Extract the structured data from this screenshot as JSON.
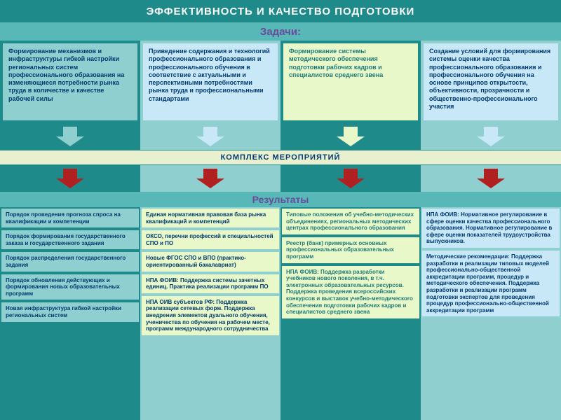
{
  "colors": {
    "teal_dark": "#1f8a8a",
    "teal_light": "#8fcfcf",
    "pale_yellow": "#e8f8c8",
    "pale_blue": "#c8e8f8",
    "navy": "#003a70",
    "purple": "#6a4a9a",
    "teal_text": "#1f7a7a",
    "complex_bg": "#e8f0d0",
    "red_arrow": "#b02020",
    "header_accent": "#58b8b8",
    "white": "#ffffff"
  },
  "title": "ЭФФЕКТИВНОСТЬ И КАЧЕСТВО ПОДГОТОВКИ",
  "tasks_label": "Задачи:",
  "tasks": [
    "Формирование механизмов и инфраструктуры гибкой настройки региональных систем профессионального образования на изменяющиеся потребности рынка труда в количестве и качестве рабочей силы",
    "Приведение содержания и технологий профессионального образования и профессионального обучения в соответствие с актуальными и перспективными потребностями рынка труда и профессиональными стандартами",
    "Формирование системы методического обеспечения подготовки рабочих кадров и специалистов среднего звена",
    "Создание условий для формирования системы оценки качества профессионального образования и профессионального обучения на основе принципов открытости, объективности, прозрачности и общественно-профессионального участия"
  ],
  "complex_label": "КОМПЛЕКС МЕРОПРИЯТИЙ",
  "results_label": "Результаты",
  "task_styles": [
    {
      "bg_key": "teal_light",
      "text_key": "navy",
      "arrow_key": "teal_light"
    },
    {
      "bg_key": "pale_blue",
      "text_key": "navy",
      "arrow_key": "pale_blue"
    },
    {
      "bg_key": "pale_yellow",
      "text_key": "teal_text",
      "arrow_key": "pale_yellow"
    },
    {
      "bg_key": "pale_blue",
      "text_key": "navy",
      "arrow_key": "pale_blue"
    }
  ],
  "results": [
    {
      "col_bg_key": "teal_dark",
      "boxes": [
        {
          "text": "Порядок проведения прогноза спроса на квалификации и компетенции",
          "bg_key": "teal_light",
          "text_key": "navy"
        },
        {
          "text": "Порядок формирования государственного заказа и государственного задания",
          "bg_key": "teal_light",
          "text_key": "navy"
        },
        {
          "text": "Порядок распределения государственного задания",
          "bg_key": "teal_light",
          "text_key": "navy"
        },
        {
          "text": "Порядок обновления действующих и формирования новых образовательных программ",
          "bg_key": "teal_light",
          "text_key": "navy"
        },
        {
          "text": "Новая инфраструктура гибкой настройки региональных систем",
          "bg_key": "teal_light",
          "text_key": "navy"
        }
      ]
    },
    {
      "col_bg_key": "teal_light",
      "boxes": [
        {
          "text": "Единая нормативная правовая база рынка квалификаций и компетенций",
          "bg_key": "pale_yellow",
          "text_key": "navy"
        },
        {
          "text": "ОКСО, перечни профессий и специальностей СПО и ПО",
          "bg_key": "pale_yellow",
          "text_key": "navy"
        },
        {
          "text": "Новые ФГОС СПО и ВПО (практико-ориентированный бакалавриат)",
          "bg_key": "pale_yellow",
          "text_key": "navy"
        },
        {
          "text": "НПА ФОИВ: Поддержка системы зачетных единиц. Практика реализации программ ПО",
          "bg_key": "pale_yellow",
          "text_key": "navy"
        },
        {
          "text": "НПА ОИВ субъектов РФ: Поддержка реализации сетевых форм. Поддержка внедрения элементов дуального обучения, ученичества по обучения на рабочем месте, программ международного сотрудничества",
          "bg_key": "pale_yellow",
          "text_key": "navy"
        }
      ]
    },
    {
      "col_bg_key": "teal_dark",
      "boxes": [
        {
          "text": "Типовые положения об учебно-методических объединениях, региональных методических центрах профессионального образования",
          "bg_key": "pale_yellow",
          "text_key": "teal_text"
        },
        {
          "text": "Реестр (банк) примерных основных профессиональных образовательных программ",
          "bg_key": "pale_yellow",
          "text_key": "teal_text"
        },
        {
          "text": "НПА ФОИВ: Поддержка разработки учебников нового поколения, в т.ч. электронных образовательных ресурсов. Поддержка проведения всероссийских конкурсов и выставок учебно-методического обеспечения подготовки рабочих кадров и специалистов среднего звена",
          "bg_key": "pale_yellow",
          "text_key": "teal_text"
        }
      ]
    },
    {
      "col_bg_key": "teal_light",
      "boxes": [
        {
          "text": "НПА ФОИВ: Нормативное регулирование в сфере оценки качества профессионального образования. Нормативное регулирование в сфере оценки показателей трудоустройства выпускников.",
          "bg_key": "pale_blue",
          "text_key": "navy"
        },
        {
          "text": "Методические рекомендации: Поддержка разработки и реализации типовых моделей профессионально-общественной аккредитации программ, процедур и методического обеспечения. Поддержка разработки и реализации программ подготовки экспертов для проведения процедур профессионально-общественной аккредитации программ",
          "bg_key": "pale_blue",
          "text_key": "navy"
        }
      ]
    }
  ]
}
